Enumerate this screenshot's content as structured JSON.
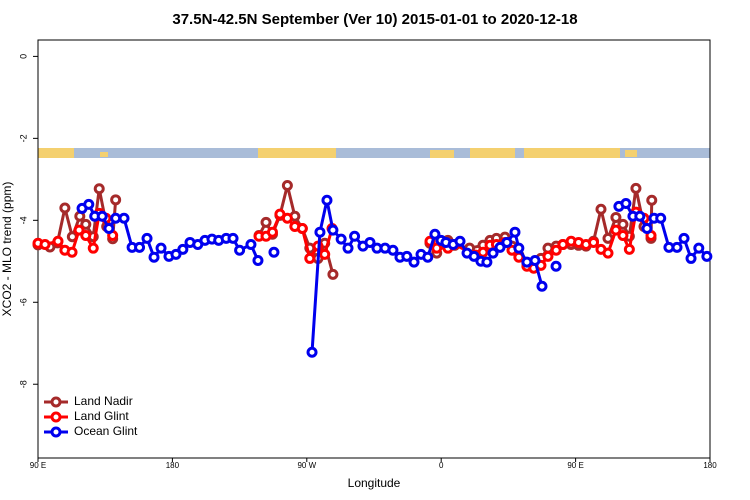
{
  "chart_data": {
    "type": "line",
    "title": "37.5N-42.5N September (Ver 10)   2015-01-01 to 2020-12-18",
    "x_label": "Longitude",
    "y_label": "XCO2 - MLO trend (ppm)",
    "xlim": [
      90,
      540
    ],
    "xticks": [
      {
        "value": 90,
        "label": "90 E"
      },
      {
        "value": 180,
        "label": "180"
      },
      {
        "value": 270,
        "label": "90 W"
      },
      {
        "value": 360,
        "label": "0"
      },
      {
        "value": 450,
        "label": "90 E"
      },
      {
        "value": 540,
        "label": "180"
      }
    ],
    "ylim": [
      -9.8,
      0.4
    ],
    "yticks": [
      0,
      -2,
      -4,
      -6,
      -8
    ],
    "legend": "bottom-left",
    "series": [
      {
        "name": "Land Nadir",
        "color": "#a52a2a",
        "x": [
          90,
          98,
          103,
          108,
          113,
          118,
          122,
          127,
          131,
          136,
          140,
          142,
          null,
          238,
          242.7,
          247,
          252,
          257,
          262,
          267,
          272,
          277.5,
          282,
          287.5,
          null,
          352.5,
          357,
          364.5,
          369,
          379,
          388,
          392.7,
          397,
          402.7,
          407.4,
          412,
          417.4,
          422,
          426.8,
          431.5,
          437,
          441.5,
          447,
          452,
          457,
          462,
          467,
          471.7,
          477,
          481.7,
          486,
          490.4,
          495.8,
          500.5,
          501
        ],
        "values": [
          -4.6,
          -4.65,
          -4.55,
          -3.7,
          -4.4,
          -3.9,
          -4.1,
          -4.4,
          -3.23,
          -4.15,
          -4.45,
          -3.5,
          null,
          -4.37,
          -4.05,
          -4.34,
          -3.88,
          -3.15,
          -3.9,
          -4.2,
          -4.68,
          -4.93,
          -4.56,
          -5.32,
          null,
          -4.56,
          -4.8,
          -4.49,
          -4.61,
          -4.68,
          -4.61,
          -4.49,
          -4.44,
          -4.41,
          -4.63,
          -4.85,
          -5.05,
          -5.02,
          -4.93,
          -4.68,
          -4.63,
          -4.59,
          -4.59,
          -4.61,
          -4.63,
          -4.51,
          -3.73,
          -4.44,
          -3.93,
          -4.1,
          -4.39,
          -3.22,
          -4.15,
          -4.44,
          -3.51
        ]
      },
      {
        "name": "Land Glint",
        "color": "#ff0000",
        "x": [
          90,
          94.7,
          103.4,
          108,
          112.8,
          117.5,
          122,
          127,
          131,
          135.5,
          140,
          null,
          238,
          242.7,
          247,
          252,
          257,
          262,
          267,
          272,
          277.5,
          282,
          286.9,
          null,
          352.5,
          357,
          364.5,
          369,
          383,
          388,
          392.7,
          397,
          402.7,
          407.4,
          412,
          417.4,
          422,
          426.8,
          431.5,
          437,
          441.5,
          447,
          452,
          457,
          462,
          467,
          471.7,
          477,
          481.7,
          486,
          490.4,
          495.8,
          500.5
        ],
        "values": [
          -4.56,
          -4.59,
          -4.51,
          -4.73,
          -4.78,
          -4.24,
          -4.37,
          -4.68,
          -3.83,
          -3.95,
          -4.37,
          null,
          -4.39,
          -4.39,
          -4.29,
          -3.85,
          -3.95,
          -4.15,
          -4.2,
          -4.93,
          -4.63,
          -4.83,
          -4.2,
          null,
          -4.51,
          -4.68,
          -4.68,
          -4.59,
          -4.85,
          -4.78,
          -4.61,
          -4.59,
          -4.54,
          -4.73,
          -4.9,
          -5.12,
          -5.17,
          -5.1,
          -4.88,
          -4.73,
          -4.59,
          -4.51,
          -4.54,
          -4.59,
          -4.54,
          -4.71,
          -4.8,
          -4.24,
          -4.37,
          -4.71,
          -3.8,
          -3.95,
          -4.37
        ]
      },
      {
        "name": "Ocean Glint",
        "color": "#0000ee",
        "x": [
          119.5,
          124,
          128,
          133,
          137.5,
          142,
          147.6,
          153,
          158,
          163,
          167.7,
          172.4,
          177.7,
          182.4,
          187,
          191.8,
          197,
          201.8,
          206.5,
          211,
          216,
          220.6,
          225,
          232.6,
          237.3,
          null,
          248,
          null,
          273.5,
          278.8,
          283.5,
          287.5,
          293,
          297.6,
          302,
          307.6,
          312.3,
          317,
          322.4,
          327.7,
          332.4,
          337,
          341.8,
          346.5,
          351,
          355.8,
          359.9,
          363.2,
          368,
          372.6,
          377.3,
          382,
          386.6,
          390.6,
          394.7,
          399.4,
          404,
          409.4,
          412,
          417.4,
          422.8,
          427.5,
          null,
          436.9,
          null,
          479,
          483.7,
          488.4,
          493,
          497.8,
          502.5,
          507,
          512.5,
          517.9,
          522.6,
          527.3,
          532.5,
          537.9
        ],
        "values": [
          -3.71,
          -3.61,
          -3.9,
          -3.9,
          -4.2,
          -3.95,
          -3.95,
          -4.66,
          -4.66,
          -4.44,
          -4.9,
          -4.68,
          -4.88,
          -4.83,
          -4.71,
          -4.54,
          -4.59,
          -4.49,
          -4.46,
          -4.49,
          -4.44,
          -4.44,
          -4.73,
          -4.59,
          -4.98,
          null,
          -4.78,
          null,
          -7.22,
          -4.29,
          -3.51,
          -4.24,
          -4.46,
          -4.68,
          -4.39,
          -4.63,
          -4.54,
          -4.68,
          -4.68,
          -4.73,
          -4.9,
          -4.88,
          -5.02,
          -4.83,
          -4.9,
          -4.34,
          -4.49,
          -4.54,
          -4.59,
          -4.51,
          -4.8,
          -4.88,
          -5.0,
          -5.02,
          -4.8,
          -4.66,
          -4.54,
          -4.29,
          -4.68,
          -5.02,
          -4.98,
          -5.61,
          null,
          -5.12,
          null,
          -3.66,
          -3.59,
          -3.9,
          -3.9,
          -4.2,
          -3.95,
          -3.95,
          -4.66,
          -4.66,
          -4.44,
          -4.93,
          -4.68,
          -4.88
        ]
      }
    ]
  }
}
